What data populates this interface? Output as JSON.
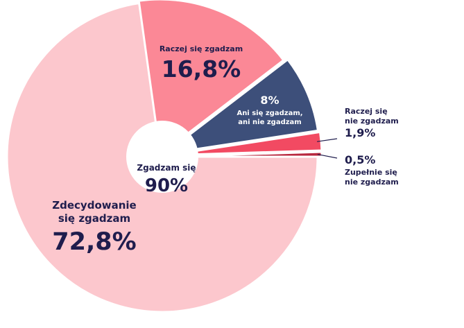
{
  "chart_data": {
    "type": "pie",
    "title": "",
    "slices": [
      {
        "label_lines": [
          "Zdecydowanie",
          "się zgadzam"
        ],
        "value": 72.8,
        "value_text": "72,8%",
        "color": "#fcc7cd"
      },
      {
        "label_lines": [
          "Raczej się zgadzam"
        ],
        "value": 16.8,
        "value_text": "16,8%",
        "color": "#fb8896"
      },
      {
        "label_lines": [
          "Ani się zgadzam,",
          "ani nie zgadzam"
        ],
        "value": 8,
        "value_text": "8%",
        "color": "#3d4f7a"
      },
      {
        "label_lines": [
          "Raczej się",
          "nie zgadzam"
        ],
        "value": 1.9,
        "value_text": "1,9%",
        "color": "#f24a62"
      },
      {
        "label_lines": [
          "Zupełnie się",
          "nie zgadzam"
        ],
        "value": 0.5,
        "value_text": "0,5%",
        "color": "#b8283f"
      }
    ],
    "center": {
      "label": "Zgadzam się",
      "value_text": "90%",
      "value": 90
    },
    "text_color": "#1f1d4d"
  }
}
